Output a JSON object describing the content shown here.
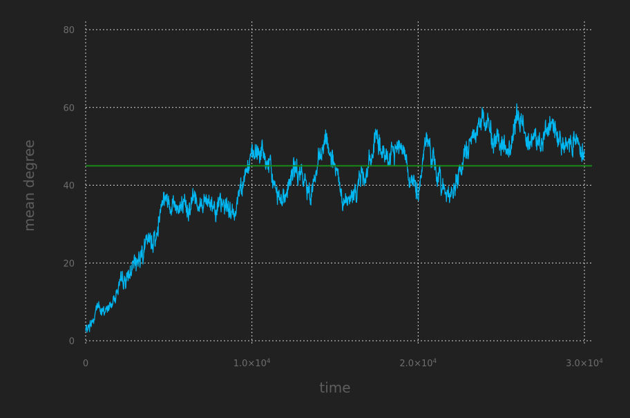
{
  "chart_data": {
    "type": "line",
    "xlabel": "time",
    "ylabel": "mean degree",
    "xlim": [
      0,
      30000
    ],
    "ylim": [
      0,
      80
    ],
    "grid": true,
    "x_ticks": [
      0,
      10000,
      20000,
      30000
    ],
    "x_tick_labels": [
      {
        "base": "0",
        "sup": ""
      },
      {
        "base": "1.0×10",
        "sup": "4"
      },
      {
        "base": "2.0×10",
        "sup": "4"
      },
      {
        "base": "3.0×10",
        "sup": "4"
      }
    ],
    "y_ticks": [
      0,
      20,
      40,
      60,
      80
    ],
    "y_tick_labels": [
      "0",
      "20",
      "40",
      "60",
      "80"
    ],
    "colors": {
      "background": "#212121",
      "series": "#00b7f1",
      "reference": "#1a8a1a",
      "grid": "#d8d8d8",
      "text": "#6e6e6e"
    },
    "series": [
      {
        "color": "#00b7f1",
        "x": [
          0,
          500,
          700,
          1000,
          1500,
          2000,
          2500,
          3000,
          3500,
          4000,
          4300,
          4600,
          5000,
          5500,
          6000,
          6500,
          7000,
          7500,
          8000,
          8500,
          8900,
          9300,
          9700,
          10000,
          10500,
          11000,
          11500,
          12000,
          12500,
          13000,
          13500,
          14000,
          14500,
          15000,
          15500,
          16000,
          16500,
          17000,
          17500,
          18000,
          18500,
          19000,
          19500,
          20000,
          20500,
          21000,
          21500,
          22000,
          22500,
          23000,
          23500,
          24000,
          24500,
          25000,
          25500,
          26000,
          26500,
          27000,
          27500,
          28000,
          28500,
          29000,
          29500,
          30000
        ],
        "y": [
          2.5,
          5.5,
          9.5,
          7,
          9,
          14,
          16,
          20,
          24,
          26,
          27,
          38,
          36,
          35,
          33,
          37,
          35,
          36,
          34,
          35,
          32,
          40,
          44,
          47,
          49,
          45,
          38,
          37,
          44,
          42,
          38,
          45,
          52,
          44,
          35,
          36,
          42,
          44,
          53,
          46,
          48,
          52,
          42,
          38,
          53,
          44,
          40,
          37,
          43,
          50,
          54,
          58,
          52,
          50,
          49,
          58,
          53,
          52,
          51,
          56,
          52,
          50,
          53,
          48
        ],
        "noise_amplitude": 3.2
      },
      {
        "color": "#1a8a1a",
        "x": [
          0,
          30500
        ],
        "y": [
          45,
          45
        ]
      }
    ]
  }
}
